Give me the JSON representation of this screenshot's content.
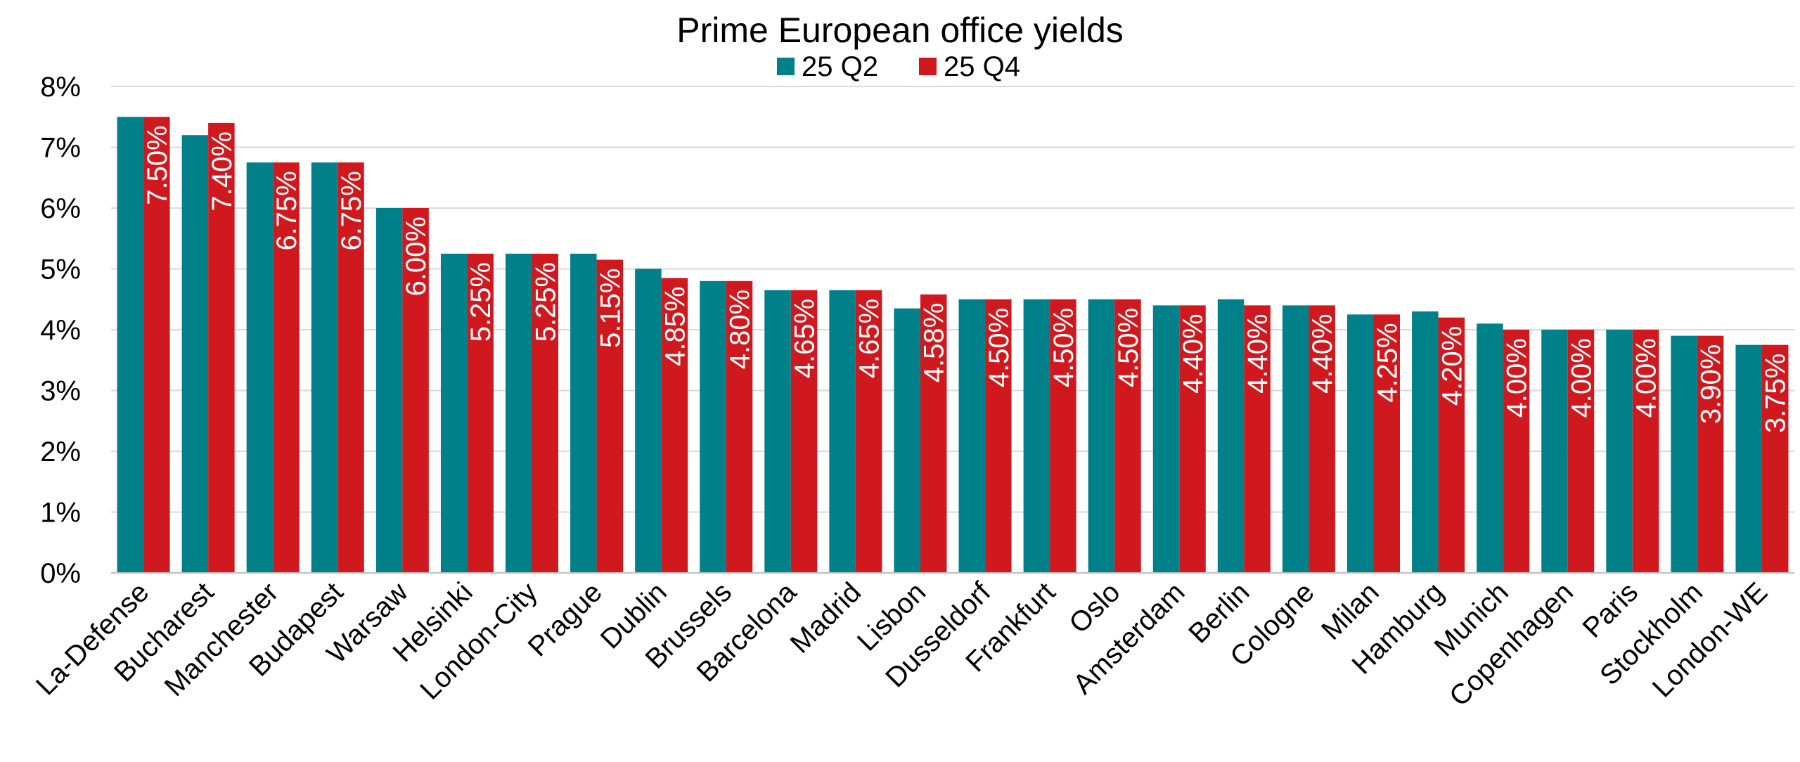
{
  "chart_data": {
    "type": "bar",
    "title": "Prime European office yields",
    "categories": [
      "La-Defense",
      "Bucharest",
      "Manchester",
      "Budapest",
      "Warsaw",
      "Helsinki",
      "London-City",
      "Prague",
      "Dublin",
      "Brussels",
      "Barcelona",
      "Madrid",
      "Lisbon",
      "Dusseldorf",
      "Frankfurt",
      "Oslo",
      "Amsterdam",
      "Berlin",
      "Cologne",
      "Milan",
      "Hamburg",
      "Munich",
      "Copenhagen",
      "Paris",
      "Stockholm",
      "London-WE"
    ],
    "series": [
      {
        "name": "25 Q2",
        "color": "#00818A",
        "values": [
          7.5,
          7.2,
          6.75,
          6.75,
          6.0,
          5.25,
          5.25,
          5.25,
          5.0,
          4.8,
          4.65,
          4.65,
          4.35,
          4.5,
          4.5,
          4.5,
          4.4,
          4.5,
          4.4,
          4.25,
          4.3,
          4.1,
          4.0,
          4.0,
          3.9,
          3.75
        ]
      },
      {
        "name": "25 Q4",
        "color": "#D0191F",
        "values": [
          7.5,
          7.4,
          6.75,
          6.75,
          6.0,
          5.25,
          5.25,
          5.15,
          4.85,
          4.8,
          4.65,
          4.65,
          4.58,
          4.5,
          4.5,
          4.5,
          4.4,
          4.4,
          4.4,
          4.25,
          4.2,
          4.0,
          4.0,
          4.0,
          3.9,
          3.75
        ]
      }
    ],
    "data_labels": [
      "7.50%",
      "7.40%",
      "6.75%",
      "6.75%",
      "6.00%",
      "5.25%",
      "5.25%",
      "5.15%",
      "4.85%",
      "4.80%",
      "4.65%",
      "4.65%",
      "4.58%",
      "4.50%",
      "4.50%",
      "4.50%",
      "4.40%",
      "4.40%",
      "4.40%",
      "4.25%",
      "4.20%",
      "4.00%",
      "4.00%",
      "4.00%",
      "3.90%",
      "3.75%"
    ],
    "data_labels_series": "25 Q4",
    "y_ticks": [
      "0%",
      "1%",
      "2%",
      "3%",
      "4%",
      "5%",
      "6%",
      "7%",
      "8%"
    ],
    "ylim": [
      0,
      8
    ],
    "xlabel": "",
    "ylabel": "",
    "grid": true,
    "legend_position": "top-center"
  }
}
